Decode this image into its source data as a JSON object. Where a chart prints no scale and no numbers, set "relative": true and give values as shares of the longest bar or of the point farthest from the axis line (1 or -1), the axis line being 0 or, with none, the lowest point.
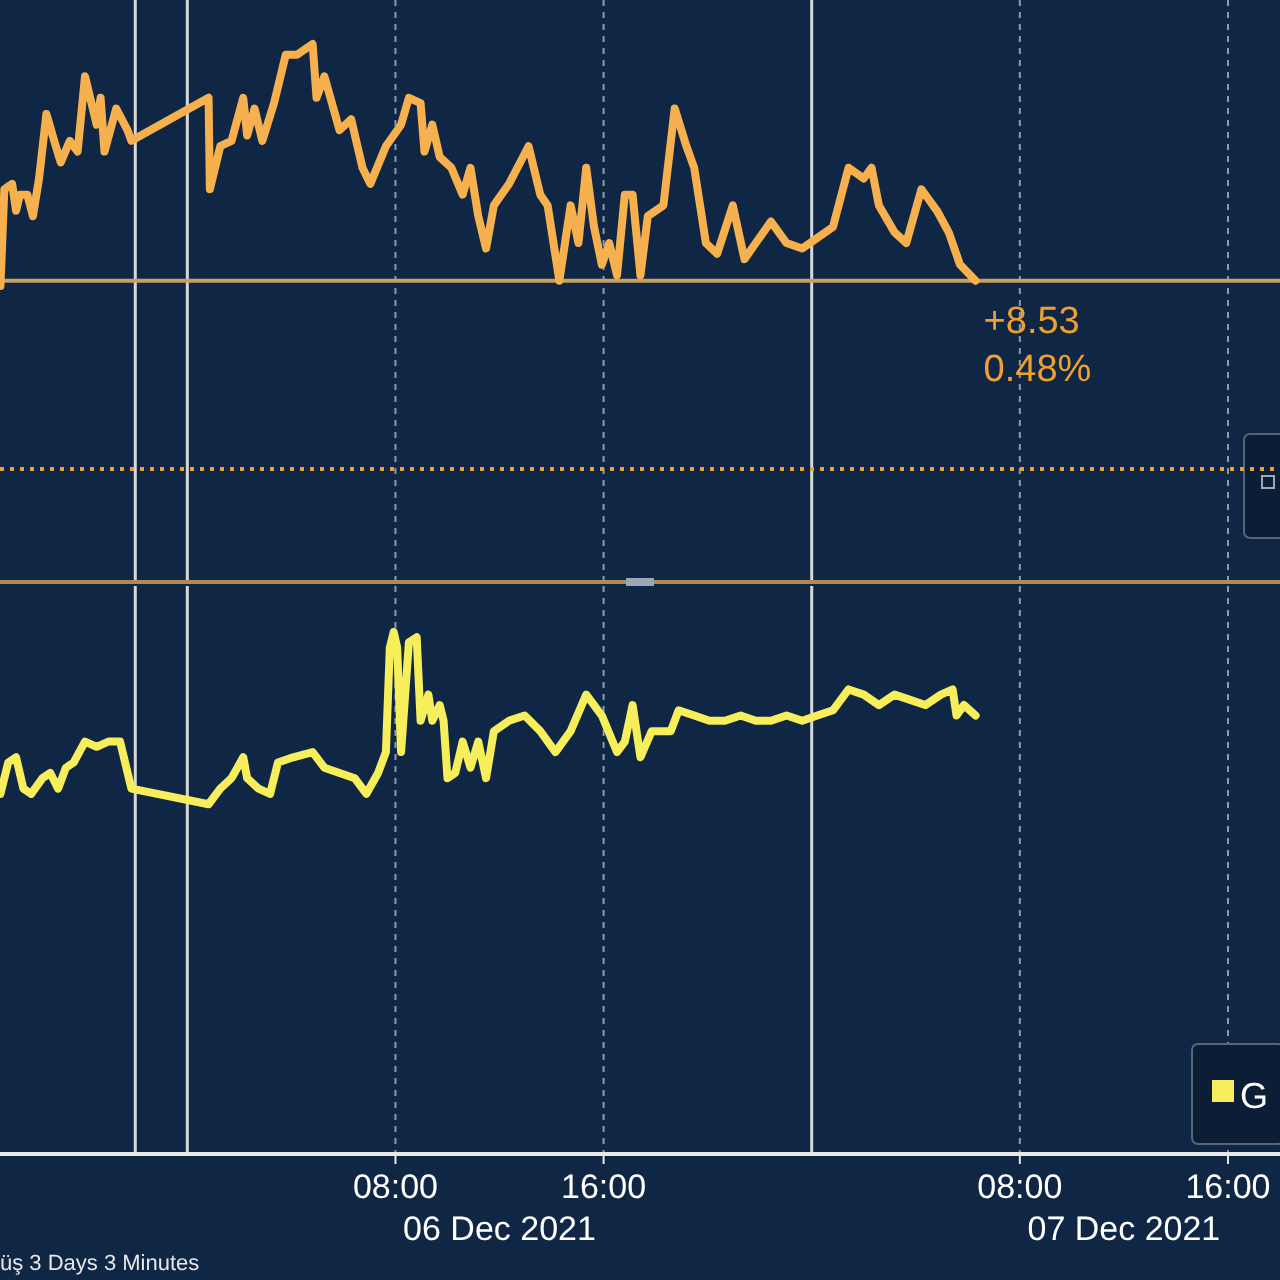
{
  "chart_data": [
    {
      "type": "line",
      "relative": true,
      "xlim": [
        "2021-12-05T16:48",
        "2021-12-07T18:00"
      ],
      "xticks": [
        {
          "value": "2021-12-06T08:00",
          "label": null
        },
        {
          "value": "2021-12-06T16:00",
          "label": null
        },
        {
          "value": "2021-12-07T08:00",
          "label": null
        },
        {
          "value": "2021-12-07T16:00",
          "label": null
        }
      ],
      "tick_labels": false,
      "grid": "x",
      "line_style": "solid",
      "marker": "none",
      "series": [
        {
          "color": "#f7b04e",
          "x": [
            "2021-12-05T16:49",
            "2021-12-05T16:58",
            "2021-12-05T17:16",
            "2021-12-05T17:25",
            "2021-12-05T17:34",
            "2021-12-05T17:51",
            "2021-12-05T18:04",
            "2021-12-05T18:18",
            "2021-12-05T18:35",
            "2021-12-05T18:53",
            "2021-12-05T19:08",
            "2021-12-05T19:29",
            "2021-12-05T19:47",
            "2021-12-05T20:04",
            "2021-12-05T20:19",
            "2021-12-05T20:31",
            "2021-12-05T20:40",
            "2021-12-05T20:49",
            "2021-12-05T21:16",
            "2021-12-05T21:42",
            "2021-12-05T21:51",
            "2021-12-06T00:49",
            "2021-12-06T00:52",
            "2021-12-06T01:16",
            "2021-12-06T01:42",
            "2021-12-06T02:09",
            "2021-12-06T02:18",
            "2021-12-06T02:35",
            "2021-12-06T02:53",
            "2021-12-06T03:20",
            "2021-12-06T03:47",
            "2021-12-06T04:13",
            "2021-12-06T04:49",
            "2021-12-06T04:58",
            "2021-12-06T05:16",
            "2021-12-06T05:51",
            "2021-12-06T06:18",
            "2021-12-06T06:44",
            "2021-12-06T07:02",
            "2021-12-06T07:38",
            "2021-12-06T08:13",
            "2021-12-06T08:31",
            "2021-12-06T08:58",
            "2021-12-06T09:07",
            "2021-12-06T09:25",
            "2021-12-06T09:42",
            "2021-12-06T10:09",
            "2021-12-06T10:35",
            "2021-12-06T10:53",
            "2021-12-06T11:11",
            "2021-12-06T11:29",
            "2021-12-06T11:47",
            "2021-12-06T12:22",
            "2021-12-06T13:07",
            "2021-12-06T13:34",
            "2021-12-06T13:51",
            "2021-12-06T14:18",
            "2021-12-06T14:44",
            "2021-12-06T15:02",
            "2021-12-06T15:20",
            "2021-12-06T15:38",
            "2021-12-06T15:56",
            "2021-12-06T16:13",
            "2021-12-06T16:31",
            "2021-12-06T16:49",
            "2021-12-06T17:07",
            "2021-12-06T17:25",
            "2021-12-06T17:42",
            "2021-12-06T18:18",
            "2021-12-06T18:44",
            "2021-12-06T19:11",
            "2021-12-06T19:29",
            "2021-12-06T19:56",
            "2021-12-06T20:22",
            "2021-12-06T20:58",
            "2021-12-06T21:25",
            "2021-12-06T21:51",
            "2021-12-06T22:26",
            "2021-12-06T23:02",
            "2021-12-06T23:38",
            "2021-12-07T00:49",
            "2021-12-07T01:25",
            "2021-12-07T02:00",
            "2021-12-07T02:18",
            "2021-12-07T02:35",
            "2021-12-07T03:11",
            "2021-12-07T03:38",
            "2021-12-07T04:13",
            "2021-12-07T04:49",
            "2021-12-07T05:16",
            "2021-12-07T05:42",
            "2021-12-07T06:18"
          ],
          "values": [
            0.55,
            0.73,
            0.74,
            0.69,
            0.72,
            0.72,
            0.68,
            0.75,
            0.87,
            0.82,
            0.78,
            0.82,
            0.8,
            0.94,
            0.89,
            0.85,
            0.9,
            0.8,
            0.88,
            0.84,
            0.82,
            0.9,
            0.73,
            0.81,
            0.82,
            0.9,
            0.83,
            0.88,
            0.82,
            0.89,
            0.98,
            0.98,
            1,
            0.9,
            0.94,
            0.84,
            0.86,
            0.77,
            0.74,
            0.81,
            0.85,
            0.9,
            0.89,
            0.8,
            0.85,
            0.79,
            0.77,
            0.72,
            0.77,
            0.68,
            0.62,
            0.7,
            0.74,
            0.81,
            0.72,
            0.7,
            0.56,
            0.7,
            0.63,
            0.77,
            0.66,
            0.59,
            0.63,
            0.57,
            0.72,
            0.72,
            0.57,
            0.68,
            0.7,
            0.88,
            0.81,
            0.77,
            0.63,
            0.61,
            0.7,
            0.6,
            0.63,
            0.67,
            0.63,
            0.62,
            0.66,
            0.77,
            0.75,
            0.77,
            0.7,
            0.65,
            0.63,
            0.73,
            0.69,
            0.65,
            0.59,
            0.56
          ]
        }
      ],
      "ref_lines": [
        {
          "axis": "x",
          "value": "2021-12-05T22:00",
          "color": "#d8d8d8",
          "line_style": "solid"
        },
        {
          "axis": "x",
          "value": "2021-12-06T00:00",
          "color": "#d8d8d8",
          "line_style": "solid"
        },
        {
          "axis": "x",
          "value": "2021-12-07T00:00",
          "color": "#d8d8d8",
          "line_style": "solid"
        },
        {
          "axis": "y",
          "value": 0.21,
          "color": "#f0a030",
          "line_style": "dotted"
        },
        {
          "axis": "y",
          "value": 0.56,
          "color": "#c9a060",
          "line_style": "solid"
        }
      ],
      "annotations": [
        {
          "text": "+8.53",
          "x": "2021-12-07T06:18",
          "y": 0.56
        },
        {
          "text": "0.48%",
          "x": "2021-12-07T06:18",
          "y": 0.56
        }
      ]
    },
    {
      "type": "line",
      "relative": true,
      "xlim": [
        "2021-12-05T16:48",
        "2021-12-07T18:00"
      ],
      "xticks": [
        {
          "value": "2021-12-06T08:00",
          "label": "08:00"
        },
        {
          "value": "2021-12-06T16:00",
          "label": "16:00"
        },
        {
          "value": "2021-12-07T08:00",
          "label": "08:00"
        },
        {
          "value": "2021-12-07T16:00",
          "label": "16:00"
        }
      ],
      "tick_labels": "x",
      "grid": "x",
      "legend": "bottom right",
      "line_style": "solid",
      "marker": "none",
      "series": [
        {
          "name": "G",
          "color": "#f7ee5c",
          "x": [
            "2021-12-05T16:49",
            "2021-12-05T17:07",
            "2021-12-05T17:25",
            "2021-12-05T17:42",
            "2021-12-05T18:00",
            "2021-12-05T18:26",
            "2021-12-05T18:44",
            "2021-12-05T19:02",
            "2021-12-05T19:20",
            "2021-12-05T19:38",
            "2021-12-05T20:04",
            "2021-12-05T20:31",
            "2021-12-05T20:58",
            "2021-12-05T21:25",
            "2021-12-05T21:51",
            "2021-12-06T00:49",
            "2021-12-06T01:16",
            "2021-12-06T01:42",
            "2021-12-06T02:09",
            "2021-12-06T02:18",
            "2021-12-06T02:44",
            "2021-12-06T03:11",
            "2021-12-06T03:29",
            "2021-12-06T04:04",
            "2021-12-06T04:49",
            "2021-12-06T05:16",
            "2021-12-06T05:51",
            "2021-12-06T06:26",
            "2021-12-06T06:53",
            "2021-12-06T07:20",
            "2021-12-06T07:38",
            "2021-12-06T07:47",
            "2021-12-06T07:56",
            "2021-12-06T08:04",
            "2021-12-06T08:13",
            "2021-12-06T08:31",
            "2021-12-06T08:49",
            "2021-12-06T08:58",
            "2021-12-06T09:16",
            "2021-12-06T09:25",
            "2021-12-06T09:42",
            "2021-12-06T09:51",
            "2021-12-06T10:00",
            "2021-12-06T10:18",
            "2021-12-06T10:35",
            "2021-12-06T10:53",
            "2021-12-06T11:11",
            "2021-12-06T11:29",
            "2021-12-06T11:47",
            "2021-12-06T12:22",
            "2021-12-06T12:58",
            "2021-12-06T13:34",
            "2021-12-06T14:09",
            "2021-12-06T14:44",
            "2021-12-06T15:20",
            "2021-12-06T15:56",
            "2021-12-06T16:31",
            "2021-12-06T16:49",
            "2021-12-06T17:07",
            "2021-12-06T17:25",
            "2021-12-06T17:51",
            "2021-12-06T18:35",
            "2021-12-06T18:53",
            "2021-12-06T19:29",
            "2021-12-06T20:04",
            "2021-12-06T20:40",
            "2021-12-06T21:16",
            "2021-12-06T21:51",
            "2021-12-06T22:26",
            "2021-12-06T23:02",
            "2021-12-06T23:38",
            "2021-12-07T00:13",
            "2021-12-07T00:49",
            "2021-12-07T01:25",
            "2021-12-07T02:00",
            "2021-12-07T02:35",
            "2021-12-07T03:11",
            "2021-12-07T03:47",
            "2021-12-07T04:22",
            "2021-12-07T04:58",
            "2021-12-07T05:25",
            "2021-12-07T05:34",
            "2021-12-07T05:51",
            "2021-12-07T06:18"
          ],
          "values": [
            0.69,
            0.75,
            0.76,
            0.7,
            0.69,
            0.72,
            0.73,
            0.7,
            0.74,
            0.75,
            0.79,
            0.78,
            0.79,
            0.79,
            0.7,
            0.67,
            0.7,
            0.72,
            0.76,
            0.72,
            0.7,
            0.69,
            0.75,
            0.76,
            0.77,
            0.74,
            0.73,
            0.72,
            0.69,
            0.73,
            0.77,
            0.97,
            1,
            0.97,
            0.77,
            0.98,
            0.99,
            0.83,
            0.88,
            0.83,
            0.86,
            0.83,
            0.72,
            0.73,
            0.79,
            0.74,
            0.79,
            0.72,
            0.81,
            0.83,
            0.84,
            0.81,
            0.77,
            0.81,
            0.88,
            0.84,
            0.77,
            0.79,
            0.86,
            0.76,
            0.81,
            0.81,
            0.85,
            0.84,
            0.83,
            0.83,
            0.84,
            0.83,
            0.83,
            0.84,
            0.83,
            0.84,
            0.85,
            0.89,
            0.88,
            0.86,
            0.88,
            0.87,
            0.86,
            0.88,
            0.89,
            0.84,
            0.86,
            0.84
          ]
        }
      ],
      "ref_lines": [
        {
          "axis": "x",
          "value": "2021-12-05T22:00",
          "color": "#d8d8d8",
          "line_style": "solid"
        },
        {
          "axis": "x",
          "value": "2021-12-06T00:00",
          "color": "#d8d8d8",
          "line_style": "solid"
        },
        {
          "axis": "x",
          "value": "2021-12-07T00:00",
          "color": "#d8d8d8",
          "line_style": "solid"
        }
      ],
      "annotations": [
        "06 Dec 2021",
        "07 Dec 2021",
        "üş 3 Days 3 Minutes"
      ]
    }
  ]
}
